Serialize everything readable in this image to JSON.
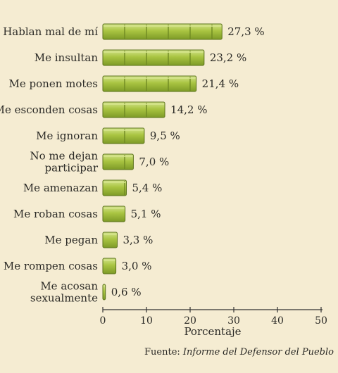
{
  "chart_data": {
    "type": "bar",
    "orientation": "horizontal",
    "categories": [
      "Hablan mal de mí",
      "Me insultan",
      "Me ponen motes",
      "Me esconden cosas",
      "Me ignoran",
      "No me dejan participar",
      "Me amenazan",
      "Me roban cosas",
      "Me pegan",
      "Me rompen cosas",
      "Me acosan sexualmente"
    ],
    "category_lines": [
      [
        "Hablan mal de mí"
      ],
      [
        "Me insultan"
      ],
      [
        "Me ponen motes"
      ],
      [
        "Me esconden cosas"
      ],
      [
        "Me ignoran"
      ],
      [
        "No me dejan",
        "participar"
      ],
      [
        "Me amenazan"
      ],
      [
        "Me roban cosas"
      ],
      [
        "Me pegan"
      ],
      [
        "Me rompen cosas"
      ],
      [
        "Me acosan",
        "sexualmente"
      ]
    ],
    "values": [
      27.3,
      23.2,
      21.4,
      14.2,
      9.5,
      7.0,
      5.4,
      5.1,
      3.3,
      3.0,
      0.6
    ],
    "data_labels": [
      "27,3 %",
      "23,2 %",
      "21,4 %",
      "14,2 %",
      "9,5 %",
      "7,0 %",
      "5,4 %",
      "5,1 %",
      "3,3 %",
      "3,0 %",
      "0,6 %"
    ],
    "xlabel": "Porcentaje",
    "xlim": [
      0,
      50
    ],
    "xticks": [
      0,
      10,
      20,
      30,
      40,
      50
    ],
    "grid": false,
    "colors": {
      "bar_fill": "#a9c441",
      "bar_highlight": "#d4e48c",
      "bar_segment": "#6f8a22",
      "bar_edge": "#5b731a",
      "axis": "#333333",
      "background": "#f5ecd2"
    }
  },
  "source": {
    "prefix": "Fuente: ",
    "title": "Informe del Defensor del Pueblo"
  }
}
